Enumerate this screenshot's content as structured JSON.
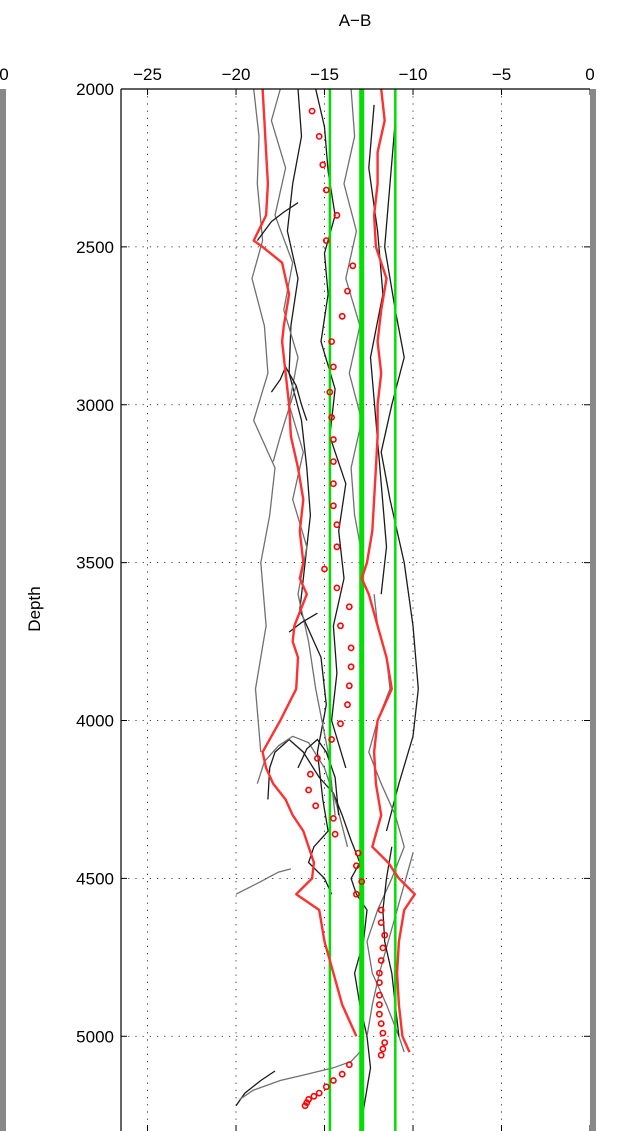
{
  "chart_data": {
    "type": "line",
    "title": "A−B",
    "ylabel": "Depth",
    "xlabel": "",
    "xlim": [
      -26.5,
      0
    ],
    "ylim": [
      5300,
      2000
    ],
    "y_reversed": true,
    "grid": true,
    "x_ticks": [
      {
        "value": -25,
        "label": "−25"
      },
      {
        "value": -20,
        "label": "−20"
      },
      {
        "value": -15,
        "label": "−15"
      },
      {
        "value": -10,
        "label": "−10"
      },
      {
        "value": -5,
        "label": "−5"
      },
      {
        "value": 0,
        "label": "0"
      }
    ],
    "y_ticks": [
      {
        "value": 2000,
        "label": "2000"
      },
      {
        "value": 2500,
        "label": "2500"
      },
      {
        "value": 3000,
        "label": "3000"
      },
      {
        "value": 3500,
        "label": "3500"
      },
      {
        "value": 4000,
        "label": "4000"
      },
      {
        "value": 4500,
        "label": "4500"
      },
      {
        "value": 5000,
        "label": "5000"
      }
    ],
    "left_panel_partial_tick_label": "0",
    "colors": {
      "mean_line": "#00e000",
      "bound_lines": "#00e000",
      "envelope": "#ff3030",
      "markers": "#ff0000",
      "profiles_dark": "#1a1a1a",
      "profiles_gray": "#707070",
      "panel_edge": "#888888"
    },
    "vertical_lines": [
      {
        "x": -14.7,
        "kind": "lower_bound"
      },
      {
        "x": -12.9,
        "kind": "mean"
      },
      {
        "x": -11.0,
        "kind": "upper_bound"
      }
    ],
    "markers": {
      "x": [
        -15.7,
        -15.3,
        -15.1,
        -14.9,
        -14.3,
        -14.9,
        -13.4,
        -13.7,
        -14.0,
        -14.6,
        -14.5,
        -14.7,
        -14.6,
        -14.5,
        -14.5,
        -14.5,
        -14.5,
        -14.3,
        -14.3,
        -15.0,
        -14.3,
        -13.6,
        -14.1,
        -13.5,
        -13.5,
        -13.6,
        -13.7,
        -14.1,
        -14.6,
        -15.4,
        -15.8,
        -15.9,
        -15.5,
        -14.5,
        -14.4,
        -13.1,
        -13.2,
        -12.9,
        -13.2,
        -11.8,
        -11.8,
        -11.6,
        -11.7,
        -11.8,
        -11.9,
        -11.9,
        -11.9,
        -11.9,
        -11.9,
        -11.8,
        -11.7,
        -11.6,
        -11.7,
        -11.8,
        -13.6,
        -14.0,
        -14.5,
        -14.9,
        -15.3,
        -15.6,
        -15.9,
        -16.0,
        -16.1
      ],
      "y": [
        2070,
        2150,
        2240,
        2320,
        2400,
        2480,
        2560,
        2640,
        2720,
        2800,
        2880,
        2960,
        3040,
        3110,
        3180,
        3250,
        3320,
        3380,
        3450,
        3520,
        3580,
        3640,
        3700,
        3770,
        3830,
        3890,
        3950,
        4010,
        4060,
        4120,
        4170,
        4220,
        4270,
        4310,
        4360,
        4420,
        4460,
        4510,
        4550,
        4600,
        4640,
        4680,
        4720,
        4760,
        4800,
        4830,
        4870,
        4900,
        4930,
        4960,
        4990,
        5020,
        5040,
        5060,
        5090,
        5120,
        5140,
        5160,
        5180,
        5190,
        5200,
        5210,
        5220
      ]
    },
    "envelope_lines": [
      {
        "y": [
          2000,
          2100,
          2200,
          2300,
          2400,
          2480,
          2500,
          2550,
          2600,
          2650,
          2750,
          2800,
          2900,
          3000,
          3100,
          3200,
          3300,
          3400,
          3500,
          3550,
          3600,
          3700,
          3750,
          3800,
          3900,
          4000,
          4050,
          4100,
          4150,
          4200,
          4250,
          4300,
          4350,
          4400,
          4450,
          4500,
          4550,
          4600,
          4700,
          4800,
          4900,
          5000
        ],
        "x": [
          -18.5,
          -18.4,
          -18.3,
          -18.2,
          -18.3,
          -19.0,
          -18.5,
          -17.4,
          -17.2,
          -17.0,
          -17.3,
          -17.4,
          -17.2,
          -17.0,
          -16.9,
          -16.5,
          -16.2,
          -16.4,
          -16.2,
          -16.4,
          -16.0,
          -16.7,
          -16.8,
          -16.5,
          -16.6,
          -17.5,
          -18.0,
          -18.5,
          -18.3,
          -17.9,
          -17.2,
          -16.8,
          -16.2,
          -15.9,
          -15.6,
          -15.7,
          -16.6,
          -15.3,
          -15.0,
          -14.5,
          -14.0,
          -13.2
        ]
      },
      {
        "y": [
          2000,
          2100,
          2200,
          2300,
          2400,
          2500,
          2600,
          2700,
          2800,
          2900,
          3000,
          3100,
          3200,
          3300,
          3400,
          3500,
          3550,
          3600,
          3700,
          3800,
          3900,
          4000,
          4100,
          4200,
          4300,
          4400,
          4450,
          4500,
          4550,
          4600,
          4700,
          4800,
          4900,
          5000,
          5050
        ],
        "x": [
          -11.8,
          -11.6,
          -12.0,
          -12.0,
          -12.2,
          -12.1,
          -11.5,
          -11.8,
          -12.0,
          -11.8,
          -12.0,
          -12.0,
          -12.1,
          -12.2,
          -12.3,
          -12.6,
          -12.9,
          -12.5,
          -12.0,
          -11.5,
          -11.2,
          -12.0,
          -12.2,
          -12.1,
          -11.8,
          -12.3,
          -11.4,
          -10.8,
          -9.9,
          -10.5,
          -10.8,
          -10.9,
          -10.8,
          -10.6,
          -10.2
        ]
      }
    ],
    "profiles": [
      {
        "tone": "dark",
        "x": [
          -16.5,
          -16.3,
          -16.8,
          -17.1,
          -16.5,
          -16.9,
          -17.0,
          -16.3,
          -16.0,
          -15.8,
          -16.1,
          -16.4,
          -15.2,
          -14.9,
          -15.4,
          -15.1,
          -14.8,
          -15.6,
          -15.9,
          -15.0,
          -14.6
        ],
        "y": [
          2000,
          2150,
          2300,
          2450,
          2600,
          2750,
          2900,
          3050,
          3200,
          3350,
          3500,
          3650,
          3800,
          3950,
          4100,
          4250,
          4350,
          4400,
          4450,
          4500,
          4550
        ]
      },
      {
        "tone": "gray",
        "x": [
          -19.0,
          -18.7,
          -18.8,
          -18.5,
          -19.1,
          -18.4,
          -18.2,
          -19.0,
          -17.8,
          -18.1,
          -18.6,
          -18.3,
          -18.9,
          -18.6
        ],
        "y": [
          2000,
          2150,
          2300,
          2480,
          2600,
          2750,
          2900,
          3050,
          3200,
          3350,
          3500,
          3700,
          3900,
          4100
        ]
      },
      {
        "tone": "dark",
        "x": [
          -15.5,
          -15.0,
          -14.8,
          -14.4,
          -15.0,
          -14.8,
          -15.2,
          -14.4,
          -14.7,
          -13.8,
          -14.2,
          -13.9,
          -14.5,
          -14.3,
          -14.6,
          -13.8
        ],
        "y": [
          2000,
          2120,
          2260,
          2400,
          2520,
          2650,
          2800,
          2950,
          3100,
          3250,
          3400,
          3550,
          3700,
          3850,
          4000,
          4150
        ]
      },
      {
        "tone": "gray",
        "x": [
          -13.5,
          -13.3,
          -13.9,
          -13.2,
          -13.8,
          -13.0,
          -13.6,
          -12.9,
          -13.5,
          -13.3,
          -12.8,
          -13.0
        ],
        "y": [
          2000,
          2150,
          2300,
          2450,
          2600,
          2750,
          2900,
          3050,
          3200,
          3350,
          3500,
          3650
        ]
      },
      {
        "tone": "dark",
        "x": [
          -11.0,
          -11.3,
          -11.6,
          -11.0,
          -10.5,
          -11.2,
          -11.8,
          -11.3,
          -10.5,
          -10.0,
          -9.7,
          -10.0,
          -10.8,
          -11.5
        ],
        "y": [
          2100,
          2300,
          2500,
          2700,
          2850,
          3000,
          3150,
          3300,
          3500,
          3700,
          3900,
          4050,
          4200,
          4350
        ]
      },
      {
        "tone": "dark",
        "x": [
          -12.2,
          -12.5,
          -12.0,
          -11.7,
          -12.4,
          -12.1,
          -11.8,
          -11.5,
          -11.8
        ],
        "y": [
          2050,
          2250,
          2450,
          2650,
          2850,
          3050,
          3250,
          3450,
          3600
        ]
      },
      {
        "tone": "gray",
        "x": [
          -17.5,
          -18.0,
          -17.2,
          -17.8,
          -16.8,
          -17.3,
          -16.5,
          -17.0,
          -16.2,
          -16.8,
          -16.0,
          -16.5,
          -15.9,
          -15.5,
          -14.8,
          -14.4
        ],
        "y": [
          2000,
          2100,
          2250,
          2400,
          2550,
          2700,
          2850,
          3000,
          3150,
          3300,
          3450,
          3600,
          3750,
          3900,
          4100,
          4300
        ]
      },
      {
        "tone": "dark",
        "x": [
          -18.2,
          -18.1,
          -17.8,
          -17.0,
          -16.2,
          -15.3,
          -14.5,
          -14.0,
          -13.5,
          -13.0
        ],
        "y": [
          4250,
          4150,
          4100,
          4060,
          4100,
          4180,
          4230,
          4300,
          4380,
          4450
        ]
      },
      {
        "tone": "gray",
        "x": [
          -18.8,
          -18.4,
          -17.6,
          -16.8,
          -15.9,
          -15.0,
          -14.3,
          -13.7
        ],
        "y": [
          4200,
          4130,
          4080,
          4050,
          4070,
          4150,
          4270,
          4400
        ]
      },
      {
        "tone": "dark",
        "x": [
          -16.5,
          -16.0,
          -15.4,
          -14.9,
          -14.4,
          -14.2
        ],
        "y": [
          4150,
          4090,
          4060,
          4100,
          4180,
          4300
        ]
      },
      {
        "tone": "gray",
        "x": [
          -20.0,
          -18.6,
          -17.6,
          -16.9
        ],
        "y": [
          4550,
          4510,
          4480,
          4470
        ]
      },
      {
        "tone": "dark",
        "x": [
          -20.0,
          -19.5,
          -18.6,
          -17.8
        ],
        "y": [
          5220,
          5180,
          5140,
          5110
        ]
      },
      {
        "tone": "gray",
        "x": [
          -19.8,
          -19.0,
          -17.5,
          -16.0,
          -14.5,
          -13.5,
          -13.0
        ],
        "y": [
          5200,
          5170,
          5140,
          5120,
          5100,
          5080,
          5050
        ]
      },
      {
        "tone": "dark",
        "x": [
          -18.8,
          -18.0,
          -17.3,
          -16.5
        ],
        "y": [
          2480,
          2420,
          2390,
          2360
        ]
      },
      {
        "tone": "gray",
        "x": [
          -17.9,
          -17.5,
          -17.0,
          -16.6
        ],
        "y": [
          3180,
          3100,
          3010,
          2940
        ]
      },
      {
        "tone": "dark",
        "x": [
          -18.0,
          -17.5,
          -17.2,
          -16.6,
          -16.3,
          -16.0
        ],
        "y": [
          2960,
          2920,
          2880,
          2940,
          3000,
          3050
        ]
      },
      {
        "tone": "dark",
        "x": [
          -17.0,
          -16.3,
          -15.7,
          -15.4
        ],
        "y": [
          3720,
          3690,
          3670,
          3660
        ]
      },
      {
        "tone": "gray",
        "x": [
          -12.2,
          -12.0,
          -11.5,
          -11.3,
          -12.0,
          -12.5,
          -11.8,
          -11.0,
          -10.5,
          -11.2,
          -12.0,
          -12.6,
          -12.3,
          -11.5,
          -10.8,
          -10.5
        ],
        "y": [
          3600,
          3700,
          3800,
          3900,
          4000,
          4100,
          4200,
          4300,
          4400,
          4500,
          4600,
          4700,
          4800,
          4900,
          5000,
          5050
        ]
      },
      {
        "tone": "dark",
        "x": [
          -13.0,
          -13.5,
          -13.2,
          -12.6,
          -12.8,
          -13.3,
          -13.0,
          -12.6,
          -12.4,
          -12.7,
          -13.0
        ],
        "y": [
          4450,
          4500,
          4550,
          4600,
          4700,
          4800,
          4900,
          5000,
          5100,
          5200,
          5300
        ]
      },
      {
        "tone": "gray",
        "x": [
          -10.0,
          -10.4,
          -10.9,
          -11.4,
          -11.9,
          -12.3,
          -12.6
        ],
        "y": [
          4420,
          4500,
          4600,
          4700,
          4800,
          4900,
          5000
        ]
      },
      {
        "tone": "dark",
        "x": [
          -11.2,
          -11.5,
          -11.7,
          -11.6,
          -11.2,
          -11.0,
          -10.8
        ],
        "y": [
          4400,
          4500,
          4600,
          4700,
          4800,
          4900,
          5000
        ]
      }
    ]
  }
}
